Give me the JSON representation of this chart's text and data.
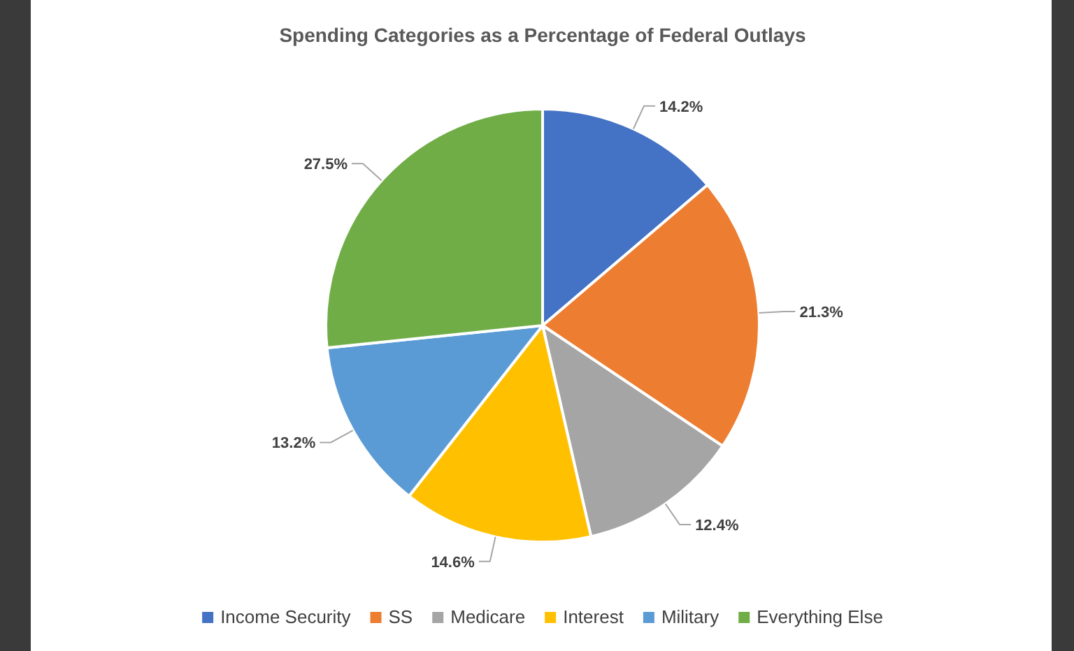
{
  "chart_data": {
    "type": "pie",
    "title": "Spending Categories as a Percentage of Federal Outlays",
    "categories": [
      "Income Security",
      "SS",
      "Medicare",
      "Interest",
      "Military",
      "Everything Else"
    ],
    "values": [
      14.2,
      21.3,
      12.4,
      14.6,
      13.2,
      27.5
    ],
    "colors": [
      "#4472c4",
      "#ed7d31",
      "#a5a5a5",
      "#ffc000",
      "#5b9bd5",
      "#70ad47"
    ],
    "value_labels": [
      "14.2%",
      "21.3%",
      "12.4%",
      "14.6%",
      "13.2%",
      "27.5%"
    ],
    "legend": "bottom"
  }
}
